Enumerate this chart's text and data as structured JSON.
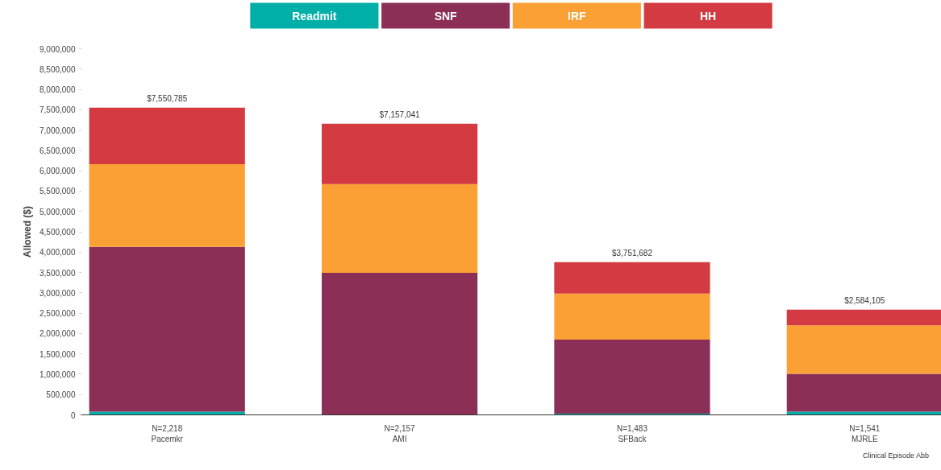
{
  "chart_data": {
    "type": "bar",
    "stacked": true,
    "ylabel": "Allowed ($)",
    "xlabel": "Clinical Episode Abb",
    "categories": [
      "N=2,218\nPacemkr",
      "N=2,157\nAMI",
      "N=1,483\nSFBack",
      "N=1,541\nMJRLE"
    ],
    "series": [
      {
        "name": "Readmit",
        "color": "#00b0a8",
        "values": [
          80000,
          10000,
          30000,
          80000
        ]
      },
      {
        "name": "SNF",
        "color": "#8b2f57",
        "values": [
          4050000,
          3480000,
          1820000,
          930000
        ]
      },
      {
        "name": "IRF",
        "color": "#fba034",
        "values": [
          2030000,
          2180000,
          1130000,
          1190000
        ]
      },
      {
        "name": "HH",
        "color": "#d33a42",
        "values": [
          1390785,
          1487041,
          771682,
          384105
        ]
      }
    ],
    "totals": [
      "$7,550,785",
      "$7,157,041",
      "$3,751,682",
      "$2,584,105"
    ],
    "ylim": [
      0,
      9000000
    ],
    "yticks": [
      {
        "value": 0,
        "label": "0"
      },
      {
        "value": 500000,
        "label": "500,000"
      },
      {
        "value": 1000000,
        "label": "1,000,000"
      },
      {
        "value": 1500000,
        "label": "1,500,000"
      },
      {
        "value": 2000000,
        "label": "2,000,000"
      },
      {
        "value": 2500000,
        "label": "2,500,000"
      },
      {
        "value": 3000000,
        "label": "3,000,000"
      },
      {
        "value": 3500000,
        "label": "3,500,000"
      },
      {
        "value": 4000000,
        "label": "4,000,000"
      },
      {
        "value": 4500000,
        "label": "4,500,000"
      },
      {
        "value": 5000000,
        "label": "5,000,000"
      },
      {
        "value": 5500000,
        "label": "5,500,000"
      },
      {
        "value": 6000000,
        "label": "6,000,000"
      },
      {
        "value": 6500000,
        "label": "6,500,000"
      },
      {
        "value": 7000000,
        "label": "7,000,000"
      },
      {
        "value": 7500000,
        "label": "7,500,000"
      },
      {
        "value": 8000000,
        "label": "8,000,000"
      },
      {
        "value": 8500000,
        "label": "8,500,000"
      },
      {
        "value": 9000000,
        "label": "9,000,000"
      }
    ],
    "grid": false,
    "legend": "top"
  }
}
